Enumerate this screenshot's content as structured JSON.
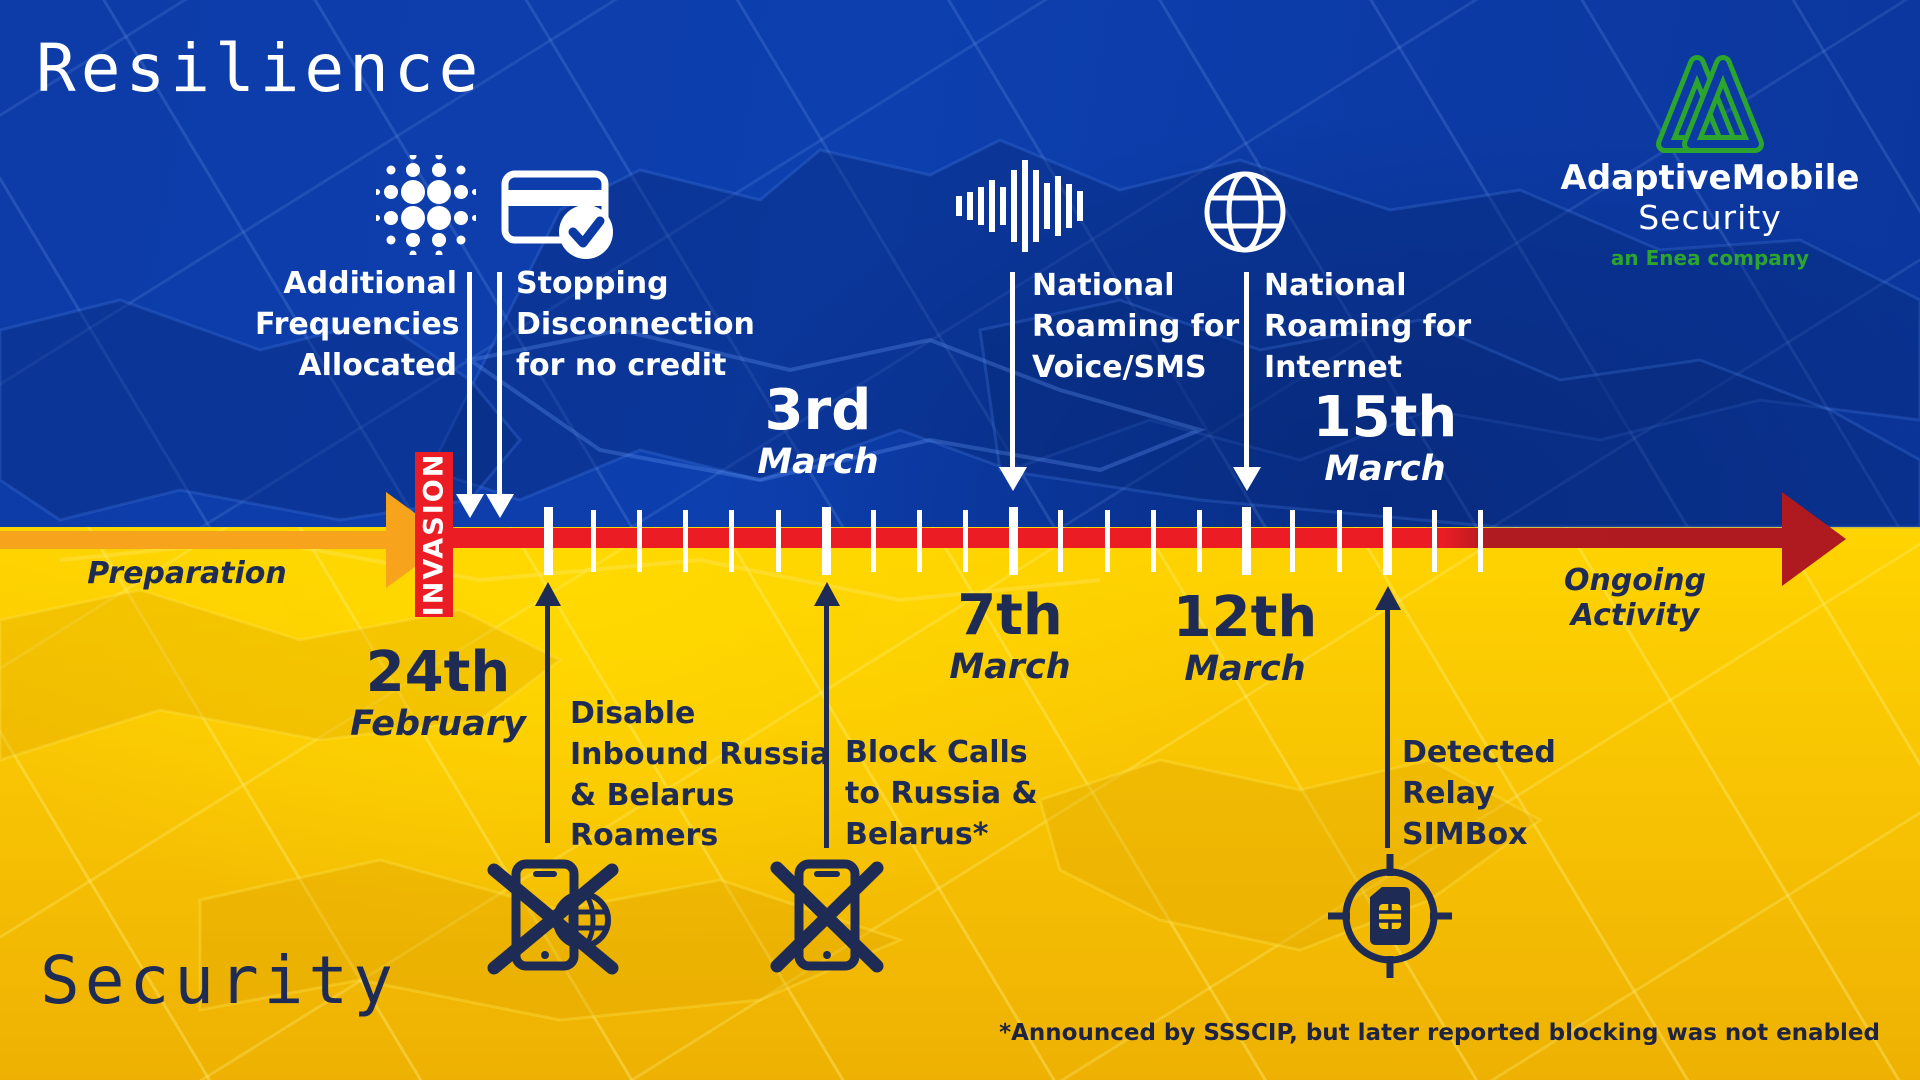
{
  "titles": {
    "resilience": "Resilience",
    "security": "Security"
  },
  "logo": {
    "brand": "AdaptiveMobile",
    "division": "Security",
    "tagline": "an Enea company"
  },
  "timeline": {
    "preparation_label": "Preparation",
    "invasion_label": "INVASION",
    "ongoing_label": "Ongoing Activity"
  },
  "dates": [
    {
      "day": "24th",
      "month": "February"
    },
    {
      "day": "3rd",
      "month": "March"
    },
    {
      "day": "7th",
      "month": "March"
    },
    {
      "day": "12th",
      "month": "March"
    },
    {
      "day": "15th",
      "month": "March"
    }
  ],
  "events": {
    "resilience": [
      {
        "icon": "frequency-dots-icon",
        "label": "Additional\nFrequencies\nAllocated"
      },
      {
        "icon": "credit-card-check-icon",
        "label": "Stopping\nDisconnection\nfor no credit"
      },
      {
        "icon": "audio-waveform-icon",
        "label": "National\nRoaming for\nVoice/SMS"
      },
      {
        "icon": "globe-icon",
        "label": "National\nRoaming for\nInternet"
      }
    ],
    "security": [
      {
        "icon": "phone-roaming-blocked-icon",
        "label": "Disable\nInbound Russia\n& Belarus\nRoamers"
      },
      {
        "icon": "phone-blocked-icon",
        "label": "Block Calls\nto Russia &\nBelarus*"
      },
      {
        "icon": "sim-target-icon",
        "label": "Detected\nRelay\nSIMBox"
      }
    ]
  },
  "footnote": "*Announced by SSSCIP, but later reported blocking was not enabled",
  "colors": {
    "flag_blue": "#0d3fae",
    "flag_yellow": "#ffd400",
    "timeline_red": "#ec1c24",
    "timeline_dark_red": "#ae1a20",
    "preparation_orange": "#f7a41c",
    "navy_text": "#1e2b55",
    "logo_green": "#2ba52e"
  }
}
